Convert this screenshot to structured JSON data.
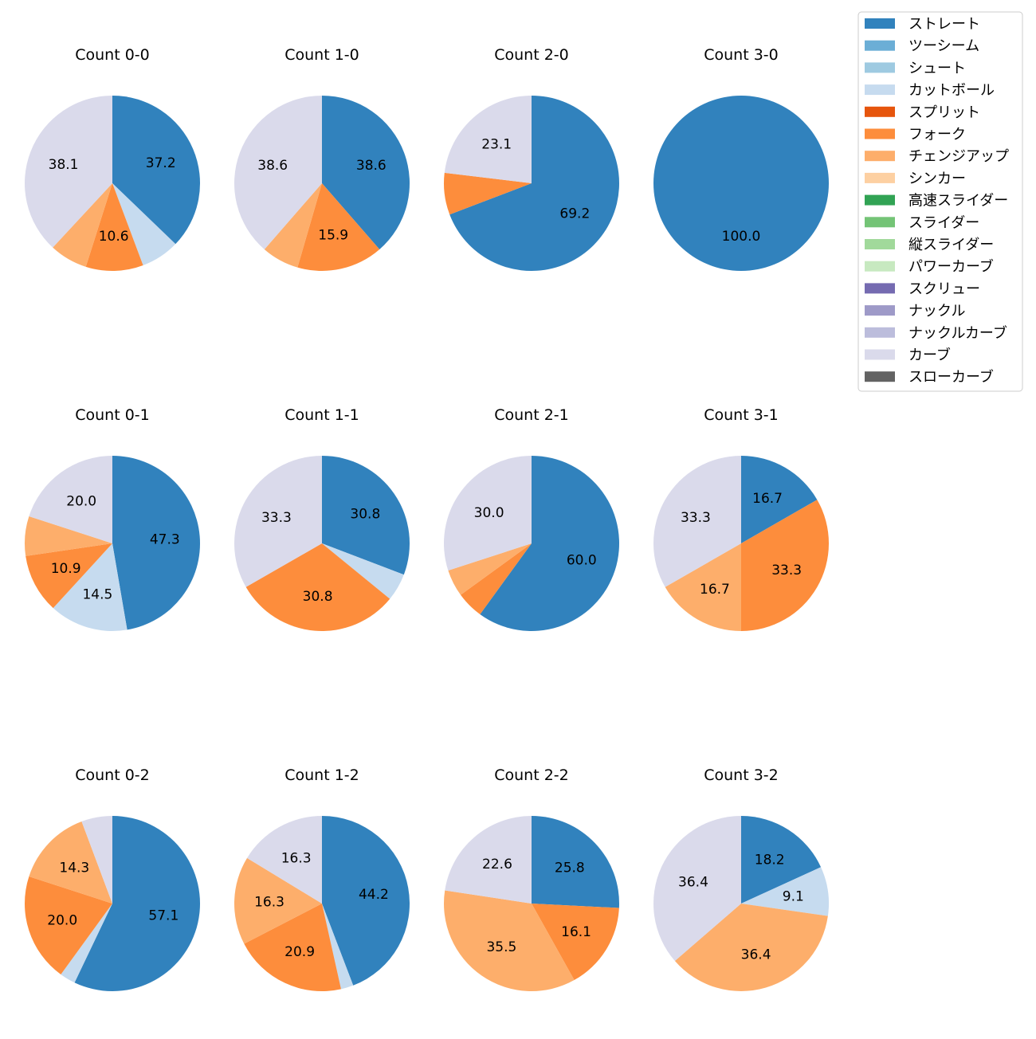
{
  "chart_data": {
    "type": "pie",
    "start_angle": 90,
    "direction": "clockwise",
    "legend_placement": "top-right",
    "legend": [
      {
        "name": "ストレート",
        "color": "#3182bd"
      },
      {
        "name": "ツーシーム",
        "color": "#6baed6"
      },
      {
        "name": "シュート",
        "color": "#9ecae1"
      },
      {
        "name": "カットボール",
        "color": "#c6dbef"
      },
      {
        "name": "スプリット",
        "color": "#e6550d"
      },
      {
        "name": "フォーク",
        "color": "#fd8d3c"
      },
      {
        "name": "チェンジアップ",
        "color": "#fdae6b"
      },
      {
        "name": "シンカー",
        "color": "#fdd0a2"
      },
      {
        "name": "高速スライダー",
        "color": "#31a354"
      },
      {
        "name": "スライダー",
        "color": "#74c476"
      },
      {
        "name": "縦スライダー",
        "color": "#a1d99b"
      },
      {
        "name": "パワーカーブ",
        "color": "#c7e9c0"
      },
      {
        "name": "スクリュー",
        "color": "#756bb1"
      },
      {
        "name": "ナックル",
        "color": "#9e9ac8"
      },
      {
        "name": "ナックルカーブ",
        "color": "#bcbddc"
      },
      {
        "name": "カーブ",
        "color": "#dadaeb"
      },
      {
        "name": "スローカーブ",
        "color": "#636363"
      }
    ],
    "pies": [
      {
        "title": "Count 0-0",
        "slices": [
          {
            "pitch": "ストレート",
            "value": 37.2
          },
          {
            "pitch": "カットボール",
            "value": 7.1
          },
          {
            "pitch": "フォーク",
            "value": 10.6
          },
          {
            "pitch": "チェンジアップ",
            "value": 7.0
          },
          {
            "pitch": "カーブ",
            "value": 38.1
          }
        ]
      },
      {
        "title": "Count 1-0",
        "slices": [
          {
            "pitch": "ストレート",
            "value": 38.6
          },
          {
            "pitch": "フォーク",
            "value": 15.9
          },
          {
            "pitch": "チェンジアップ",
            "value": 6.9
          },
          {
            "pitch": "カーブ",
            "value": 38.6
          }
        ]
      },
      {
        "title": "Count 2-0",
        "slices": [
          {
            "pitch": "ストレート",
            "value": 69.2
          },
          {
            "pitch": "フォーク",
            "value": 7.7
          },
          {
            "pitch": "カーブ",
            "value": 23.1
          }
        ]
      },
      {
        "title": "Count 3-0",
        "slices": [
          {
            "pitch": "ストレート",
            "value": 100.0
          }
        ]
      },
      {
        "title": "Count 0-1",
        "slices": [
          {
            "pitch": "ストレート",
            "value": 47.3
          },
          {
            "pitch": "カットボール",
            "value": 14.5
          },
          {
            "pitch": "フォーク",
            "value": 10.9
          },
          {
            "pitch": "チェンジアップ",
            "value": 7.3
          },
          {
            "pitch": "カーブ",
            "value": 20.0
          }
        ]
      },
      {
        "title": "Count 1-1",
        "slices": [
          {
            "pitch": "ストレート",
            "value": 30.8
          },
          {
            "pitch": "カットボール",
            "value": 5.1
          },
          {
            "pitch": "フォーク",
            "value": 30.8
          },
          {
            "pitch": "カーブ",
            "value": 33.3
          }
        ]
      },
      {
        "title": "Count 2-1",
        "slices": [
          {
            "pitch": "ストレート",
            "value": 60.0
          },
          {
            "pitch": "フォーク",
            "value": 5.0
          },
          {
            "pitch": "チェンジアップ",
            "value": 5.0
          },
          {
            "pitch": "カーブ",
            "value": 30.0
          }
        ]
      },
      {
        "title": "Count 3-1",
        "slices": [
          {
            "pitch": "ストレート",
            "value": 16.7
          },
          {
            "pitch": "フォーク",
            "value": 33.3
          },
          {
            "pitch": "チェンジアップ",
            "value": 16.7
          },
          {
            "pitch": "カーブ",
            "value": 33.3
          }
        ]
      },
      {
        "title": "Count 0-2",
        "slices": [
          {
            "pitch": "ストレート",
            "value": 57.1
          },
          {
            "pitch": "カットボール",
            "value": 2.9
          },
          {
            "pitch": "フォーク",
            "value": 20.0
          },
          {
            "pitch": "チェンジアップ",
            "value": 14.3
          },
          {
            "pitch": "カーブ",
            "value": 5.7
          }
        ]
      },
      {
        "title": "Count 1-2",
        "slices": [
          {
            "pitch": "ストレート",
            "value": 44.2
          },
          {
            "pitch": "カットボール",
            "value": 2.3
          },
          {
            "pitch": "フォーク",
            "value": 20.9
          },
          {
            "pitch": "チェンジアップ",
            "value": 16.3
          },
          {
            "pitch": "カーブ",
            "value": 16.3
          }
        ]
      },
      {
        "title": "Count 2-2",
        "slices": [
          {
            "pitch": "ストレート",
            "value": 25.8
          },
          {
            "pitch": "フォーク",
            "value": 16.1
          },
          {
            "pitch": "チェンジアップ",
            "value": 35.5
          },
          {
            "pitch": "カーブ",
            "value": 22.6
          }
        ]
      },
      {
        "title": "Count 3-2",
        "slices": [
          {
            "pitch": "ストレート",
            "value": 18.2
          },
          {
            "pitch": "カットボール",
            "value": 9.1
          },
          {
            "pitch": "チェンジアップ",
            "value": 36.4
          },
          {
            "pitch": "カーブ",
            "value": 36.4
          }
        ]
      }
    ]
  }
}
